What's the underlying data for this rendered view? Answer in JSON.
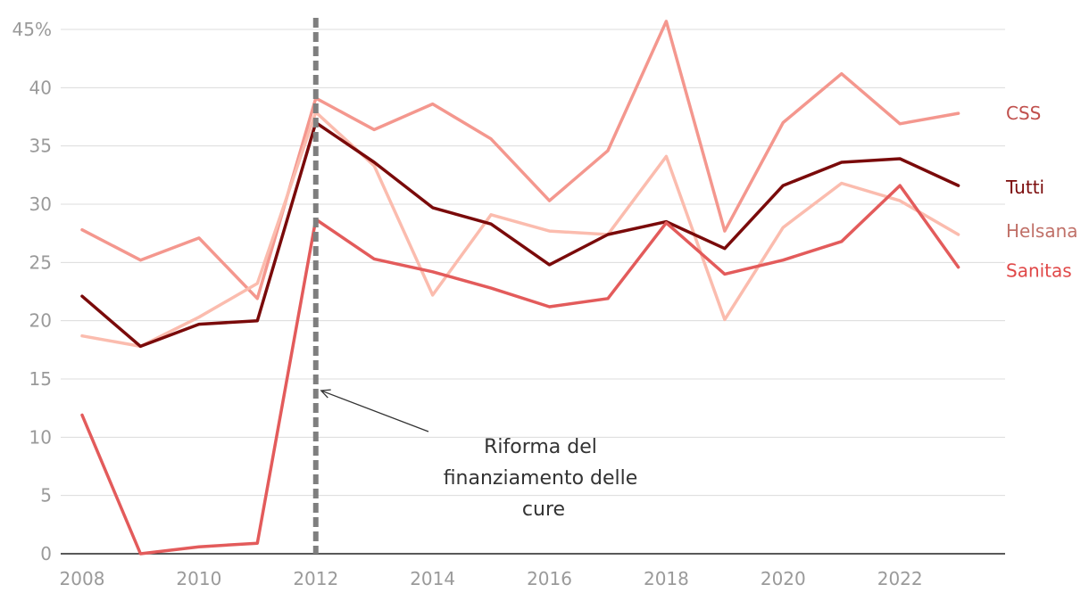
{
  "chart_data": {
    "type": "line",
    "title": "",
    "xlabel": "",
    "ylabel": "",
    "x": [
      2008,
      2009,
      2010,
      2011,
      2012,
      2013,
      2014,
      2015,
      2016,
      2017,
      2018,
      2019,
      2020,
      2021,
      2022,
      2023
    ],
    "x_ticks": [
      "2008",
      "2010",
      "2012",
      "2014",
      "2016",
      "2018",
      "2020",
      "2022"
    ],
    "y_ticks": [
      "0",
      "5",
      "10",
      "15",
      "20",
      "25",
      "30",
      "35",
      "40",
      "45%"
    ],
    "ylim": [
      0,
      45
    ],
    "xlim": [
      2008,
      2023.8
    ],
    "grid": true,
    "legend": "direct labels at right end of lines",
    "series": [
      {
        "name": "CSS",
        "color": "#f4978e",
        "values": [
          27.8,
          25.2,
          27.1,
          21.9,
          39.1,
          36.4,
          38.6,
          35.6,
          30.3,
          34.6,
          45.7,
          27.7,
          37.0,
          41.2,
          36.9,
          37.8
        ]
      },
      {
        "name": "Helsana",
        "color": "#fbbcae",
        "values": [
          18.7,
          17.8,
          20.3,
          23.2,
          37.9,
          33.3,
          22.2,
          29.1,
          27.7,
          27.4,
          34.1,
          20.1,
          28.0,
          31.8,
          30.3,
          27.4
        ]
      },
      {
        "name": "Tutti",
        "color": "#7a0a0a",
        "values": [
          22.1,
          17.8,
          19.7,
          20.0,
          37.0,
          33.6,
          29.7,
          28.3,
          24.8,
          27.4,
          28.5,
          26.2,
          31.6,
          33.6,
          33.9,
          31.6
        ]
      },
      {
        "name": "Sanitas",
        "color": "#e35b5b",
        "values": [
          11.9,
          0.0,
          0.6,
          0.9,
          28.7,
          25.3,
          24.2,
          22.8,
          21.2,
          21.9,
          28.4,
          24.0,
          25.2,
          26.8,
          31.6,
          24.6
        ]
      }
    ],
    "label_colors": {
      "CSS": "#c0504d",
      "Helsana": "#c07068",
      "Tutti": "#7a0a0a",
      "Sanitas": "#e04848"
    },
    "reference_line": {
      "x": 2012,
      "color": "#7f7f7f",
      "style": "dashed"
    },
    "annotation": {
      "lines": [
        "Riforma del",
        "finanziamento delle",
        "cure"
      ],
      "points_to_x": 2012,
      "points_to_y": 14
    }
  }
}
